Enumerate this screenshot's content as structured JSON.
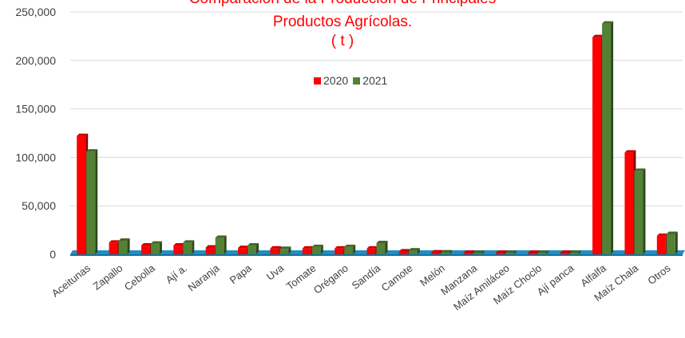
{
  "chart_data": {
    "type": "bar",
    "title_lines": [
      "Comparación de la Producción de Principales",
      "Productos Agrícolas.",
      "( t )"
    ],
    "categories": [
      "Aceitunas",
      "Zapallo",
      "Cebolla",
      "Ají a.",
      "Naranja",
      "Papa",
      "Uva",
      "Tomate",
      "Orégano",
      "Sandía",
      "Camote",
      "Melón",
      "Manzana",
      "Maíz Amiláceo",
      "Maíz Choclo",
      "Ají panca",
      "Alfalfa",
      "Maíz Chala",
      "Otros"
    ],
    "series": [
      {
        "name": "2020",
        "color": "#ff0000",
        "values": [
          122000,
          12000,
          9000,
          9000,
          7000,
          6500,
          6000,
          6000,
          6000,
          6000,
          3000,
          2000,
          1500,
          1500,
          1500,
          1500,
          224000,
          105000,
          19000
        ]
      },
      {
        "name": "2021",
        "color": "#538135",
        "values": [
          106000,
          14000,
          11000,
          12000,
          17000,
          9000,
          5500,
          7500,
          7500,
          11500,
          4000,
          2000,
          1500,
          1500,
          1500,
          1500,
          238000,
          86000,
          21000
        ]
      }
    ],
    "y_ticks": [
      "0",
      "50,000",
      "100,000",
      "150,000",
      "200,000",
      "250,000"
    ],
    "ylim": [
      0,
      250000
    ],
    "grid": true,
    "legend": "top-center",
    "floor_color": "#1f8fc4"
  }
}
